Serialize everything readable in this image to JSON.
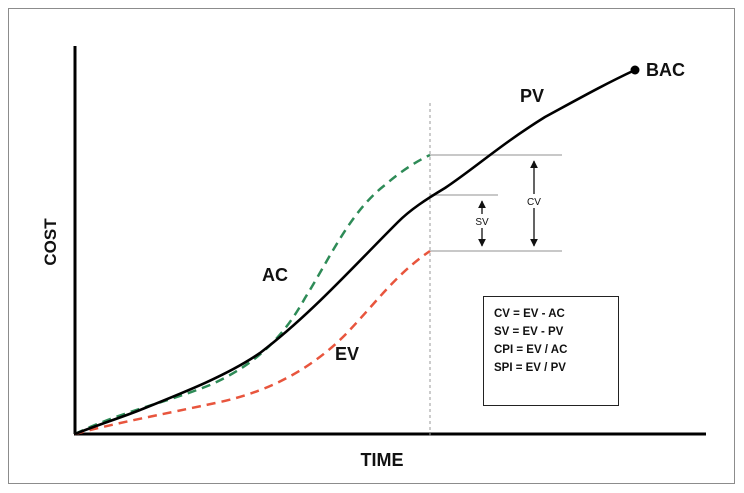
{
  "axes": {
    "x_label": "TIME",
    "y_label": "COST"
  },
  "curves": {
    "pv_label": "PV",
    "ac_label": "AC",
    "ev_label": "EV",
    "bac_label": "BAC"
  },
  "variances": {
    "sv_label": "SV",
    "cv_label": "CV"
  },
  "formulas": [
    "CV = EV - AC",
    "SV = EV - PV",
    "CPI = EV / AC",
    "SPI = EV / PV"
  ],
  "colors": {
    "pv": "#000000",
    "ac": "#2e8b57",
    "ev": "#e8553d",
    "guide": "#999999",
    "reference": "#b5b5b5"
  }
}
